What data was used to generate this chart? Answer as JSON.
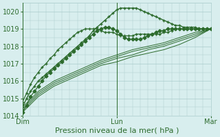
{
  "title": "",
  "xlabel": "Pression niveau de la mer( hPa )",
  "ylabel": "",
  "background_color": "#d8eeee",
  "grid_color": "#aacccc",
  "line_color": "#2d6b2d",
  "xlim": [
    0,
    48
  ],
  "ylim": [
    1014,
    1020.5
  ],
  "yticks": [
    1014,
    1015,
    1016,
    1017,
    1018,
    1019,
    1020
  ],
  "xtick_positions": [
    0,
    24,
    48
  ],
  "xtick_labels": [
    "Dim",
    "Lun",
    "Mar"
  ],
  "lines": [
    {
      "x": [
        0,
        4,
        8,
        12,
        16,
        20,
        24,
        28,
        32,
        36,
        40,
        44,
        48
      ],
      "y": [
        1014.2,
        1015.1,
        1015.7,
        1016.1,
        1016.5,
        1016.9,
        1017.1,
        1017.4,
        1017.6,
        1017.8,
        1018.1,
        1018.5,
        1019.0
      ],
      "marker": null,
      "markersize": 0,
      "linewidth": 0.7
    },
    {
      "x": [
        0,
        4,
        8,
        12,
        16,
        20,
        24,
        28,
        32,
        36,
        40,
        44,
        48
      ],
      "y": [
        1014.3,
        1015.2,
        1015.8,
        1016.2,
        1016.6,
        1017.0,
        1017.3,
        1017.5,
        1017.8,
        1018.0,
        1018.3,
        1018.6,
        1019.0
      ],
      "marker": null,
      "markersize": 0,
      "linewidth": 0.7
    },
    {
      "x": [
        0,
        4,
        8,
        12,
        16,
        20,
        24,
        28,
        32,
        36,
        40,
        44,
        48
      ],
      "y": [
        1014.4,
        1015.3,
        1015.9,
        1016.3,
        1016.7,
        1017.1,
        1017.4,
        1017.7,
        1017.9,
        1018.1,
        1018.4,
        1018.7,
        1019.0
      ],
      "marker": null,
      "markersize": 0,
      "linewidth": 0.7
    },
    {
      "x": [
        0,
        4,
        8,
        12,
        16,
        20,
        24,
        28,
        32,
        36,
        40,
        44,
        48
      ],
      "y": [
        1014.5,
        1015.4,
        1016.0,
        1016.4,
        1016.8,
        1017.2,
        1017.5,
        1017.8,
        1018.0,
        1018.2,
        1018.5,
        1018.8,
        1019.0
      ],
      "marker": null,
      "markersize": 0,
      "linewidth": 0.7
    },
    {
      "x": [
        0,
        1,
        2,
        3,
        4,
        5,
        6,
        7,
        8,
        9,
        10,
        11,
        12,
        13,
        14,
        15,
        16,
        17,
        18,
        19,
        20,
        21,
        22,
        23,
        24,
        25,
        26,
        27,
        28,
        29,
        30,
        31,
        32,
        33,
        34,
        35,
        36,
        37,
        38,
        39,
        40,
        41,
        42,
        43,
        44,
        45,
        46,
        47,
        48
      ],
      "y": [
        1014.2,
        1014.6,
        1015.1,
        1015.4,
        1015.7,
        1016.0,
        1016.3,
        1016.5,
        1016.7,
        1016.9,
        1017.1,
        1017.3,
        1017.5,
        1017.7,
        1017.9,
        1018.1,
        1018.3,
        1018.5,
        1018.7,
        1018.9,
        1019.0,
        1019.1,
        1019.1,
        1019.0,
        1018.9,
        1018.7,
        1018.5,
        1018.4,
        1018.4,
        1018.4,
        1018.4,
        1018.5,
        1018.6,
        1018.7,
        1018.8,
        1018.9,
        1018.9,
        1019.0,
        1019.0,
        1019.0,
        1019.0,
        1019.0,
        1019.0,
        1019.0,
        1019.0,
        1019.0,
        1019.0,
        1019.0,
        1019.0
      ],
      "marker": "D",
      "markersize": 2.5,
      "linewidth": 0.9
    },
    {
      "x": [
        0,
        1,
        2,
        3,
        4,
        5,
        6,
        7,
        8,
        9,
        10,
        11,
        12,
        13,
        14,
        15,
        16,
        17,
        18,
        19,
        20,
        21,
        22,
        23,
        24,
        25,
        26,
        27,
        28,
        29,
        30,
        31,
        32,
        33,
        34,
        35,
        36,
        37,
        38,
        39,
        40,
        41,
        42,
        43,
        44,
        45,
        46,
        47,
        48
      ],
      "y": [
        1014.8,
        1015.3,
        1015.8,
        1016.2,
        1016.5,
        1016.8,
        1017.0,
        1017.3,
        1017.5,
        1017.8,
        1018.0,
        1018.2,
        1018.4,
        1018.6,
        1018.8,
        1018.9,
        1019.0,
        1019.0,
        1019.0,
        1019.0,
        1018.9,
        1018.8,
        1018.8,
        1018.8,
        1018.7,
        1018.6,
        1018.6,
        1018.6,
        1018.6,
        1018.7,
        1018.7,
        1018.7,
        1018.7,
        1018.7,
        1018.7,
        1018.7,
        1018.8,
        1018.8,
        1018.9,
        1019.0,
        1019.0,
        1019.0,
        1019.0,
        1019.0,
        1019.0,
        1019.0,
        1019.0,
        1019.0,
        1019.0
      ],
      "marker": "+",
      "markersize": 3.5,
      "linewidth": 0.9
    },
    {
      "x": [
        0,
        1,
        2,
        3,
        4,
        5,
        6,
        7,
        8,
        9,
        10,
        11,
        12,
        13,
        14,
        15,
        16,
        17,
        18,
        19,
        20,
        21,
        22,
        23,
        24,
        25,
        26,
        27,
        28,
        29,
        30,
        31,
        32,
        33,
        34,
        35,
        36,
        37,
        38,
        39,
        40,
        41,
        42,
        43,
        44,
        45,
        46,
        47,
        48
      ],
      "y": [
        1014.5,
        1015.0,
        1015.4,
        1015.7,
        1016.0,
        1016.2,
        1016.4,
        1016.6,
        1016.8,
        1017.0,
        1017.2,
        1017.4,
        1017.6,
        1017.8,
        1018.0,
        1018.2,
        1018.4,
        1018.6,
        1018.9,
        1019.1,
        1019.3,
        1019.5,
        1019.7,
        1019.9,
        1020.1,
        1020.2,
        1020.2,
        1020.2,
        1020.2,
        1020.2,
        1020.1,
        1020.0,
        1019.9,
        1019.8,
        1019.7,
        1019.6,
        1019.5,
        1019.4,
        1019.3,
        1019.2,
        1019.2,
        1019.1,
        1019.1,
        1019.1,
        1019.1,
        1019.0,
        1019.0,
        1019.0,
        1019.0
      ],
      "marker": "+",
      "markersize": 3.5,
      "linewidth": 1.0
    }
  ],
  "vline_positions": [
    0,
    24,
    48
  ],
  "vline_color": "#2d6b2d",
  "vline_linewidth": 0.7,
  "font_color": "#2d6b2d",
  "tick_color": "#2d6b2d",
  "xlabel_fontsize": 8,
  "ytick_fontsize": 7,
  "xtick_fontsize": 7
}
